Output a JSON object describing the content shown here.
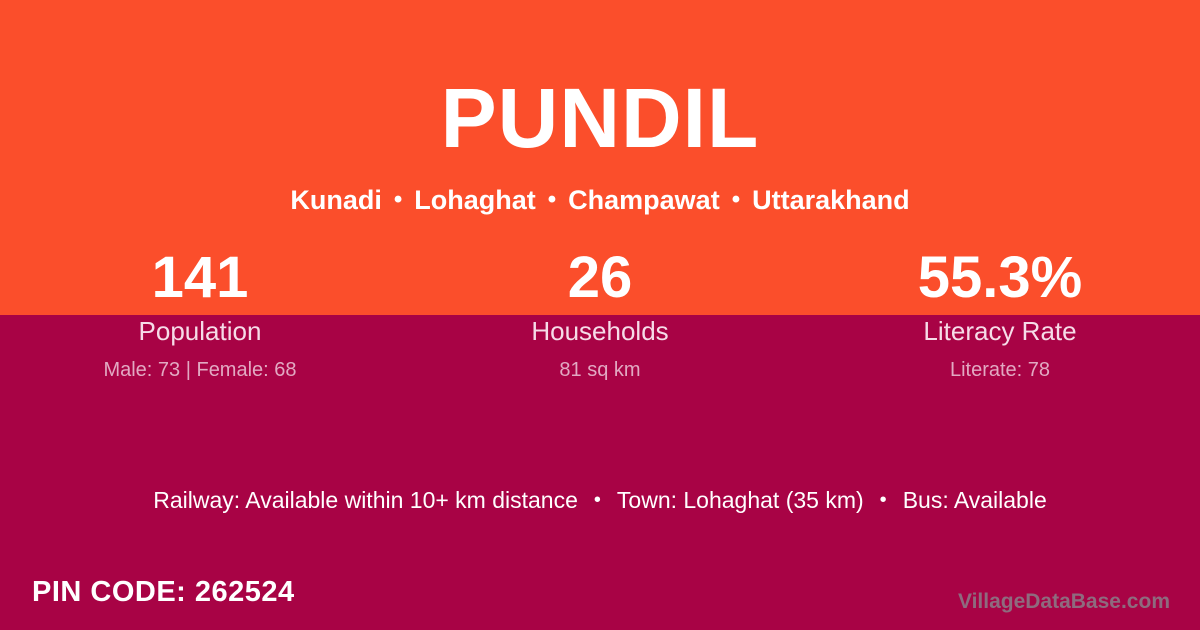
{
  "village": {
    "title": "PUNDIL"
  },
  "location": {
    "separator": "•",
    "parts": [
      "Kunadi",
      "Lohaghat",
      "Champawat",
      "Uttarakhand"
    ]
  },
  "stats": [
    {
      "value": "141",
      "label": "Population",
      "detail": "Male: 73 | Female: 68"
    },
    {
      "value": "26",
      "label": "Households",
      "detail": "81 sq km"
    },
    {
      "value": "55.3%",
      "label": "Literacy Rate",
      "detail": "Literate: 78"
    }
  ],
  "transport": {
    "separator": "•",
    "railway": "Railway: Available within 10+ km distance",
    "town": "Town: Lohaghat (35 km)",
    "bus": "Bus: Available"
  },
  "footer": {
    "pin_code_label": "PIN CODE:",
    "pin_code_value": "262524",
    "watermark": "VillageDataBase.com"
  },
  "colors": {
    "accent_orange": "#FB4E2B",
    "accent_crimson": "#A80345",
    "text_white": "#FFFFFF",
    "label_pink": "#F6DCE8",
    "detail_pink": "#E2A9C2",
    "watermark_gray": "#8E6B7E"
  }
}
